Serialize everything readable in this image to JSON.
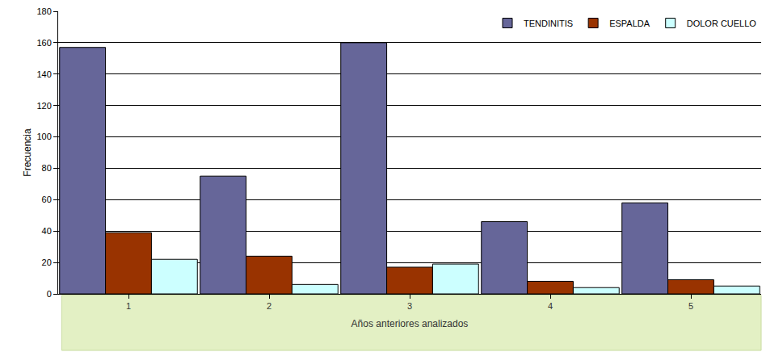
{
  "chart_data": {
    "type": "bar",
    "x_label": "Años anteriores analizados",
    "y_label": "Frecuencia",
    "categories": [
      "1",
      "2",
      "3",
      "4",
      "5"
    ],
    "series": [
      {
        "name": "TENDINITIS",
        "color": "#666699",
        "values": [
          157,
          75,
          160,
          46,
          58
        ]
      },
      {
        "name": "ESPALDA",
        "color": "#993300",
        "values": [
          39,
          24,
          17,
          8,
          9
        ]
      },
      {
        "name": "DOLOR CUELLO",
        "color": "#ccffff",
        "values": [
          22,
          6,
          19,
          4,
          5
        ]
      }
    ],
    "ylim": [
      0,
      180
    ],
    "yticks": [
      0,
      20,
      40,
      60,
      80,
      100,
      120,
      140,
      160,
      180
    ],
    "grid": true,
    "legend": "top right"
  }
}
